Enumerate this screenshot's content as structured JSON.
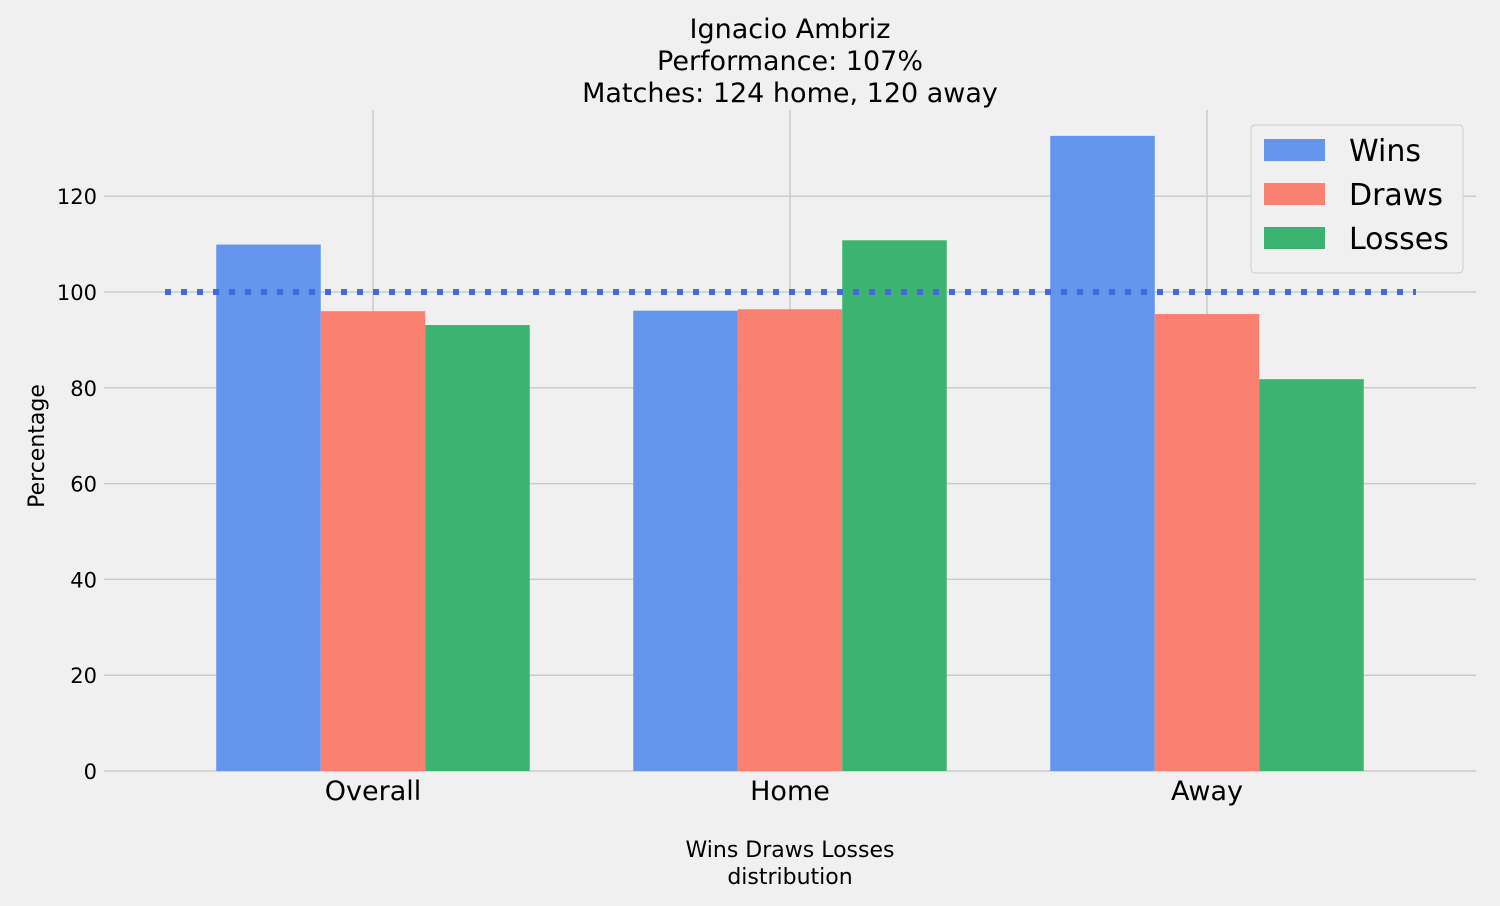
{
  "chart_data": {
    "type": "bar",
    "title": [
      "Ignacio Ambriz",
      "Performance: 107%",
      "Matches: 124 home, 120 away"
    ],
    "categories": [
      "Overall",
      "Home",
      "Away"
    ],
    "series": [
      {
        "name": "Wins",
        "color": "#6495ed",
        "values": [
          109.9,
          96.1,
          132.6
        ]
      },
      {
        "name": "Draws",
        "color": "#fa8072",
        "values": [
          96.0,
          96.4,
          95.4
        ]
      },
      {
        "name": "Losses",
        "color": "#3cb371",
        "values": [
          93.1,
          110.8,
          81.8
        ]
      }
    ],
    "reference_line": {
      "value": 100,
      "color": "#4169e1",
      "style": "dotted"
    },
    "xlabel": [
      "Wins Draws Losses",
      "distribution"
    ],
    "ylabel": "Percentage",
    "ylim": [
      0,
      138
    ],
    "yticks": [
      0,
      20,
      40,
      60,
      80,
      100,
      120
    ],
    "grid": true,
    "legend_position": "top-right"
  }
}
